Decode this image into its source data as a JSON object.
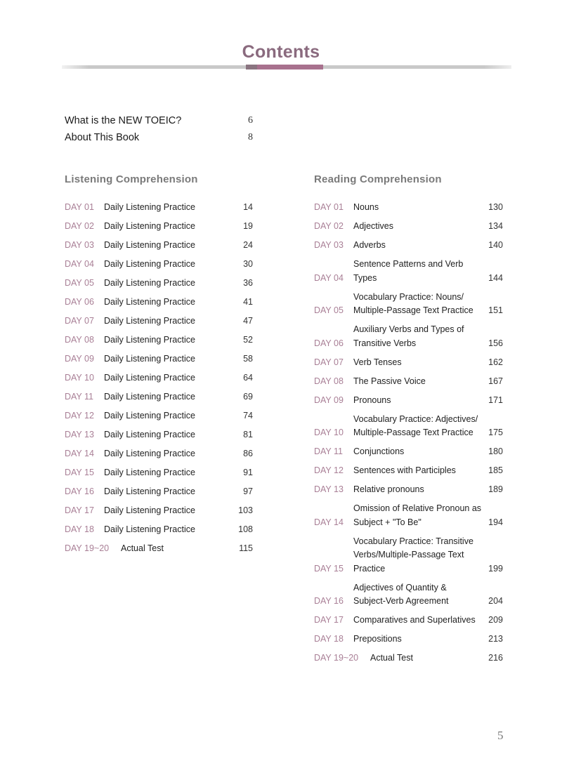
{
  "title": "Contents",
  "intro": [
    {
      "label": "What is the NEW TOEIC?",
      "page": "6"
    },
    {
      "label": "About This Book",
      "page": "8"
    }
  ],
  "listening": {
    "heading": "Listening Comprehension",
    "entries": [
      {
        "day": "DAY 01",
        "title": "Daily Listening Practice",
        "page": "14"
      },
      {
        "day": "DAY 02",
        "title": "Daily Listening Practice",
        "page": "19"
      },
      {
        "day": "DAY 03",
        "title": "Daily Listening Practice",
        "page": "24"
      },
      {
        "day": "DAY 04",
        "title": "Daily Listening Practice",
        "page": "30"
      },
      {
        "day": "DAY 05",
        "title": "Daily Listening Practice",
        "page": "36"
      },
      {
        "day": "DAY 06",
        "title": "Daily Listening Practice",
        "page": "41"
      },
      {
        "day": "DAY 07",
        "title": "Daily Listening Practice",
        "page": "47"
      },
      {
        "day": "DAY 08",
        "title": "Daily Listening Practice",
        "page": "52"
      },
      {
        "day": "DAY 09",
        "title": "Daily Listening Practice",
        "page": "58"
      },
      {
        "day": "DAY 10",
        "title": "Daily Listening Practice",
        "page": "64"
      },
      {
        "day": "DAY 11",
        "title": "Daily Listening Practice",
        "page": "69"
      },
      {
        "day": "DAY 12",
        "title": "Daily Listening Practice",
        "page": "74"
      },
      {
        "day": "DAY 13",
        "title": "Daily Listening Practice",
        "page": "81"
      },
      {
        "day": "DAY 14",
        "title": "Daily Listening Practice",
        "page": "86"
      },
      {
        "day": "DAY 15",
        "title": "Daily Listening Practice",
        "page": "91"
      },
      {
        "day": "DAY 16",
        "title": "Daily Listening Practice",
        "page": "97"
      },
      {
        "day": "DAY 17",
        "title": "Daily Listening Practice",
        "page": "103"
      },
      {
        "day": "DAY 18",
        "title": "Daily Listening Practice",
        "page": "108"
      },
      {
        "day": "DAY 19~20",
        "title": "Actual Test",
        "page": "115"
      }
    ]
  },
  "reading": {
    "heading": "Reading Comprehension",
    "entries": [
      {
        "day": "DAY 01",
        "title": "Nouns",
        "page": "130"
      },
      {
        "day": "DAY 02",
        "title": "Adjectives",
        "page": "134"
      },
      {
        "day": "DAY 03",
        "title": "Adverbs",
        "page": "140"
      },
      {
        "day": "DAY 04",
        "title": "Sentence Patterns and Verb\n    Types",
        "page": "144"
      },
      {
        "day": "DAY 05",
        "title": "Vocabulary Practice: Nouns/\nMultiple-Passage Text Practice",
        "page": "151"
      },
      {
        "day": "DAY 06",
        "title": "Auxiliary Verbs and Types of\n    Transitive Verbs",
        "page": "156"
      },
      {
        "day": "DAY 07",
        "title": "Verb Tenses",
        "page": "162"
      },
      {
        "day": "DAY 08",
        "title": "The Passive Voice",
        "page": "167"
      },
      {
        "day": "DAY 09",
        "title": "Pronouns",
        "page": "171"
      },
      {
        "day": "DAY 10",
        "title": "Vocabulary Practice: Adjectives/\nMultiple-Passage Text Practice",
        "page": "175"
      },
      {
        "day": "DAY 11",
        "title": "Conjunctions",
        "page": "180"
      },
      {
        "day": "DAY 12",
        "title": "Sentences with Participles",
        "page": "185"
      },
      {
        "day": "DAY 13",
        "title": "Relative pronouns",
        "page": "189"
      },
      {
        "day": "DAY 14",
        "title": "Omission of Relative Pronoun as\n    Subject + \"To Be\"",
        "page": "194"
      },
      {
        "day": "DAY 15",
        "title": "Vocabulary Practice: Transitive\nVerbs/Multiple-Passage Text\nPractice",
        "page": "199"
      },
      {
        "day": "DAY 16",
        "title": "Adjectives of Quantity &\nSubject-Verb Agreement",
        "page": "204"
      },
      {
        "day": "DAY 17",
        "title": "Comparatives and Superlatives",
        "page": "209"
      },
      {
        "day": "DAY 18",
        "title": "Prepositions",
        "page": "213"
      },
      {
        "day": "DAY 19~20",
        "title": "Actual Test",
        "page": "216"
      }
    ]
  },
  "folio": "5",
  "colors": {
    "accent": "#a97f96",
    "title": "#8a6a7e",
    "heading": "#7a7a7a"
  }
}
